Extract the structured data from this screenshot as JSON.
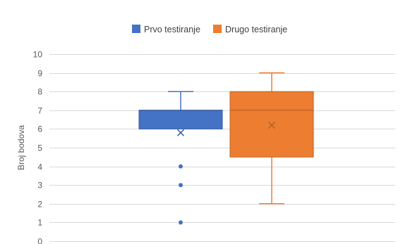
{
  "chart_data": {
    "type": "boxplot",
    "ylabel": "Broj bodova",
    "xlabel": "",
    "ylim": [
      0,
      10
    ],
    "y_ticks": [
      "0",
      "1",
      "2",
      "3",
      "4",
      "5",
      "6",
      "7",
      "8",
      "9",
      "10"
    ],
    "grid": true,
    "legend_position": "top-center",
    "series": [
      {
        "name": "Prvo testiranje",
        "color": "#4472C4",
        "whisker_min": 6,
        "q1": 6,
        "median": 7,
        "q3": 7,
        "whisker_max": 8,
        "mean": 5.8,
        "outliers": [
          4,
          3,
          1
        ]
      },
      {
        "name": "Drugo testiranje",
        "color": "#ED7D31",
        "whisker_min": 2,
        "q1": 4.5,
        "median": 7,
        "q3": 8,
        "whisker_max": 9,
        "mean": 6.2,
        "outliers": []
      }
    ]
  }
}
